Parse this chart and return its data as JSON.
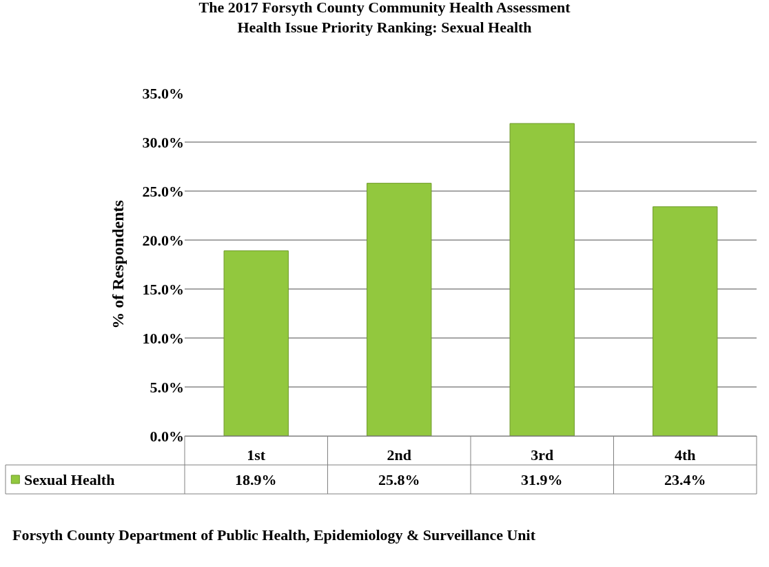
{
  "chart_data": {
    "type": "bar",
    "title": "The 2017 Forsyth County Community Health Assessment\nHealth Issue Priority Ranking: Sexual Health",
    "ylabel": "% of Respondents",
    "categories": [
      "1st",
      "2nd",
      "3rd",
      "4th"
    ],
    "series": [
      {
        "name": "Sexual Health",
        "color": "#92c83e",
        "values": [
          18.9,
          25.8,
          31.9,
          23.4
        ],
        "value_labels": [
          "18.9%",
          "25.8%",
          "31.9%",
          "23.4%"
        ]
      }
    ],
    "ylim": [
      0,
      35
    ],
    "yticks": [
      {
        "value": 0,
        "label": "0.0%"
      },
      {
        "value": 5,
        "label": "5.0%"
      },
      {
        "value": 10,
        "label": "10.0%"
      },
      {
        "value": 15,
        "label": "15.0%"
      },
      {
        "value": 20,
        "label": "20.0%"
      },
      {
        "value": 25,
        "label": "25.0%"
      },
      {
        "value": 30,
        "label": "30.0%"
      },
      {
        "value": 35,
        "label": "35.0%"
      }
    ],
    "grid": "y",
    "annotations": [
      "Forsyth County Department of Public Health, Epidemiology & Surveillance Unit"
    ]
  }
}
